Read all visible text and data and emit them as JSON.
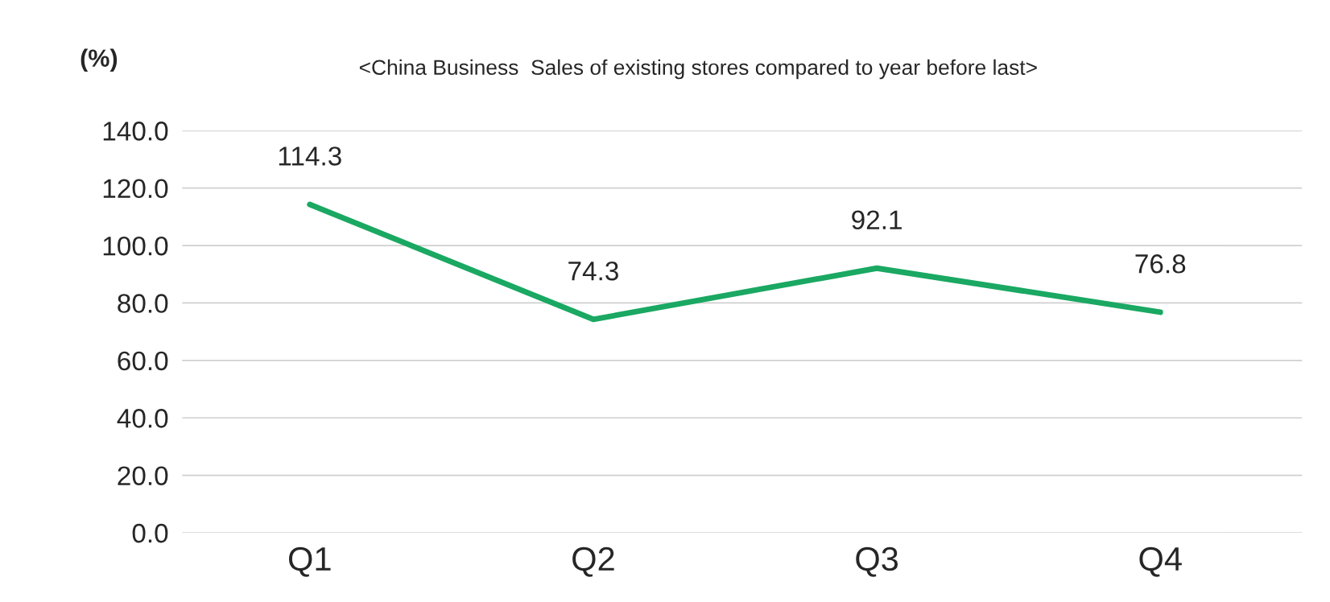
{
  "chart_data": {
    "type": "line",
    "title": "<China Business  Sales of existing stores compared to year before last>",
    "ylabel": "(%)",
    "categories": [
      "Q1",
      "Q2",
      "Q3",
      "Q4"
    ],
    "series": [
      {
        "color": "#1aa862",
        "values": [
          114.3,
          74.3,
          92.1,
          76.8
        ]
      }
    ],
    "ylim": [
      0,
      140
    ],
    "yticks": [
      {
        "value": 0,
        "label": "0.0"
      },
      {
        "value": 20,
        "label": "20.0"
      },
      {
        "value": 40,
        "label": "40.0"
      },
      {
        "value": 60,
        "label": "60.0"
      },
      {
        "value": 80,
        "label": "80.0"
      },
      {
        "value": 100,
        "label": "100.0"
      },
      {
        "value": 120,
        "label": "120.0"
      },
      {
        "value": 140,
        "label": "140.0"
      }
    ],
    "grid": "y",
    "data_labels": true,
    "marker": "none",
    "line_style": "solid",
    "legend": false
  }
}
